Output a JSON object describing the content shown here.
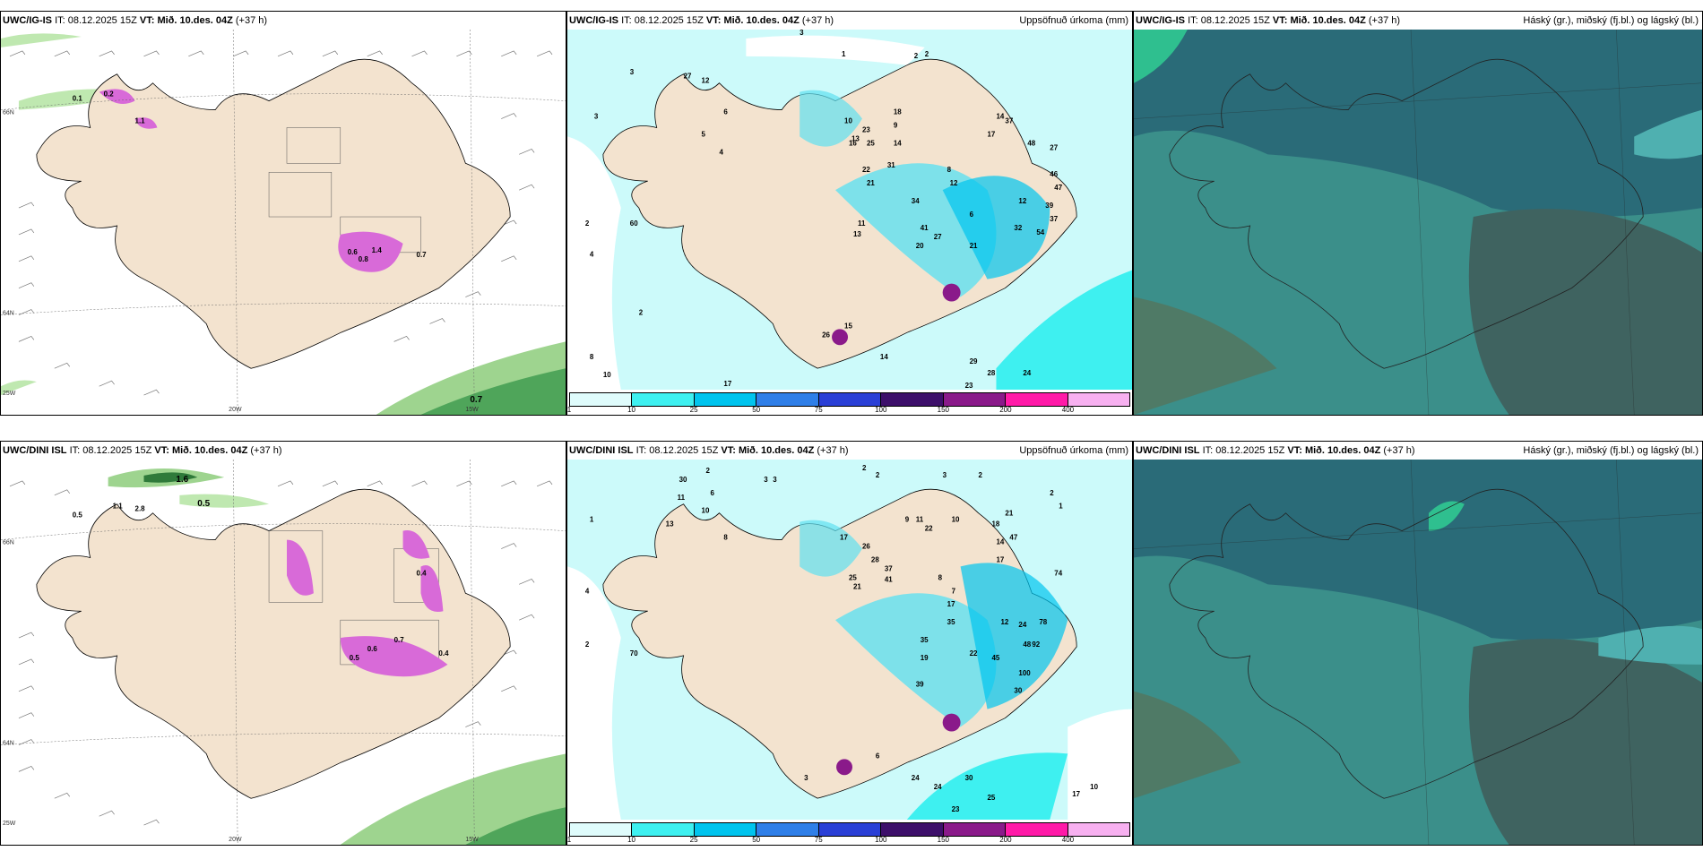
{
  "panels": [
    {
      "model": "UWC/IG-IS",
      "it_label": "IT:",
      "it_value": "08.12.2025 15Z",
      "vt_label": "VT: Mið. 10.des. 04Z",
      "lead": "(+37 h)",
      "right_title": ""
    },
    {
      "model": "UWC/IG-IS",
      "it_label": "IT:",
      "it_value": "08.12.2025 15Z",
      "vt_label": "VT: Mið. 10.des. 04Z",
      "lead": "(+37 h)",
      "right_title": "Uppsöfnuð úrkoma (mm)"
    },
    {
      "model": "UWC/IG-IS",
      "it_label": "IT:",
      "it_value": "08.12.2025 15Z",
      "vt_label": "VT: Mið. 10.des. 04Z",
      "lead": "(+37 h)",
      "right_title": "Háský (gr.), miðský (fj.bl.) og lágský (bl.)"
    },
    {
      "model": "UWC/DINI ISL",
      "it_label": "IT:",
      "it_value": "08.12.2025 15Z",
      "vt_label": "VT: Mið. 10.des. 04Z",
      "lead": "(+37 h)",
      "right_title": ""
    },
    {
      "model": "UWC/DINI ISL",
      "it_label": "IT:",
      "it_value": "08.12.2025 15Z",
      "vt_label": "VT: Mið. 10.des. 04Z",
      "lead": "(+37 h)",
      "right_title": "Uppsöfnuð úrkoma (mm)"
    },
    {
      "model": "UWC/DINI ISL",
      "it_label": "IT:",
      "it_value": "08.12.2025 15Z",
      "vt_label": "VT: Mið. 10.des. 04Z",
      "lead": "(+37 h)",
      "right_title": "Háský (gr.), miðský (fj.bl.) og lágský (bl.)"
    }
  ],
  "axis_labels": {
    "lon_20w": "20W",
    "lon_15w": "15W",
    "lat_66n": "66N",
    "lat_64n": "64N",
    "lon_25w": "25W"
  },
  "wind_values_top": [
    "0.7",
    "0.1",
    "1.1",
    "0.2",
    "1.4",
    "0.6",
    "0.7",
    "0.8"
  ],
  "wind_values_bottom": [
    "1.6",
    "0.5",
    "0.5",
    "1.1",
    "2.8",
    "0.5",
    "0.6",
    "0.4",
    "0.7",
    "0.4"
  ],
  "precip_values_top": [
    "3",
    "1",
    "2",
    "2",
    "10",
    "13",
    "27",
    "12",
    "6",
    "5",
    "4",
    "18",
    "25",
    "16",
    "23",
    "31",
    "22",
    "21",
    "9",
    "14",
    "37",
    "48",
    "27",
    "14",
    "17",
    "8",
    "12",
    "34",
    "6",
    "46",
    "47",
    "12",
    "39",
    "37",
    "32",
    "54",
    "41",
    "27",
    "20",
    "21",
    "11",
    "13",
    "15",
    "26",
    "14",
    "29",
    "28",
    "24",
    "23",
    "17",
    "10",
    "8",
    "3",
    "2",
    "4",
    "60",
    "3",
    "2"
  ],
  "precip_values_bottom": [
    "2",
    "3",
    "3",
    "2",
    "2",
    "3",
    "2",
    "2",
    "1",
    "30",
    "10",
    "11",
    "6",
    "8",
    "13",
    "17",
    "26",
    "28",
    "25",
    "21",
    "37",
    "41",
    "9",
    "11",
    "22",
    "10",
    "18",
    "14",
    "47",
    "21",
    "17",
    "74",
    "35",
    "8",
    "7",
    "17",
    "12",
    "24",
    "78",
    "92",
    "19",
    "35",
    "39",
    "22",
    "45",
    "48",
    "100",
    "30",
    "24",
    "30",
    "25",
    "17",
    "10",
    "24",
    "23",
    "6",
    "3",
    "70",
    "4",
    "2",
    "1"
  ],
  "colorbar": {
    "ticks": [
      "1",
      "10",
      "25",
      "50",
      "75",
      "100",
      "150",
      "200",
      "400"
    ],
    "colors": [
      "#dffcfc",
      "#3ef0f0",
      "#00c4ee",
      "#2f7fe8",
      "#2a3fd6",
      "#3d0f6a",
      "#8a1a8a",
      "#ff1aa8",
      "#f7b0f0"
    ]
  },
  "colors": {
    "land": "#f3e3cf",
    "sea_white": "#ffffff",
    "precip_cyan": "#ccfafa",
    "cloud_teal": "#2d7a80"
  }
}
